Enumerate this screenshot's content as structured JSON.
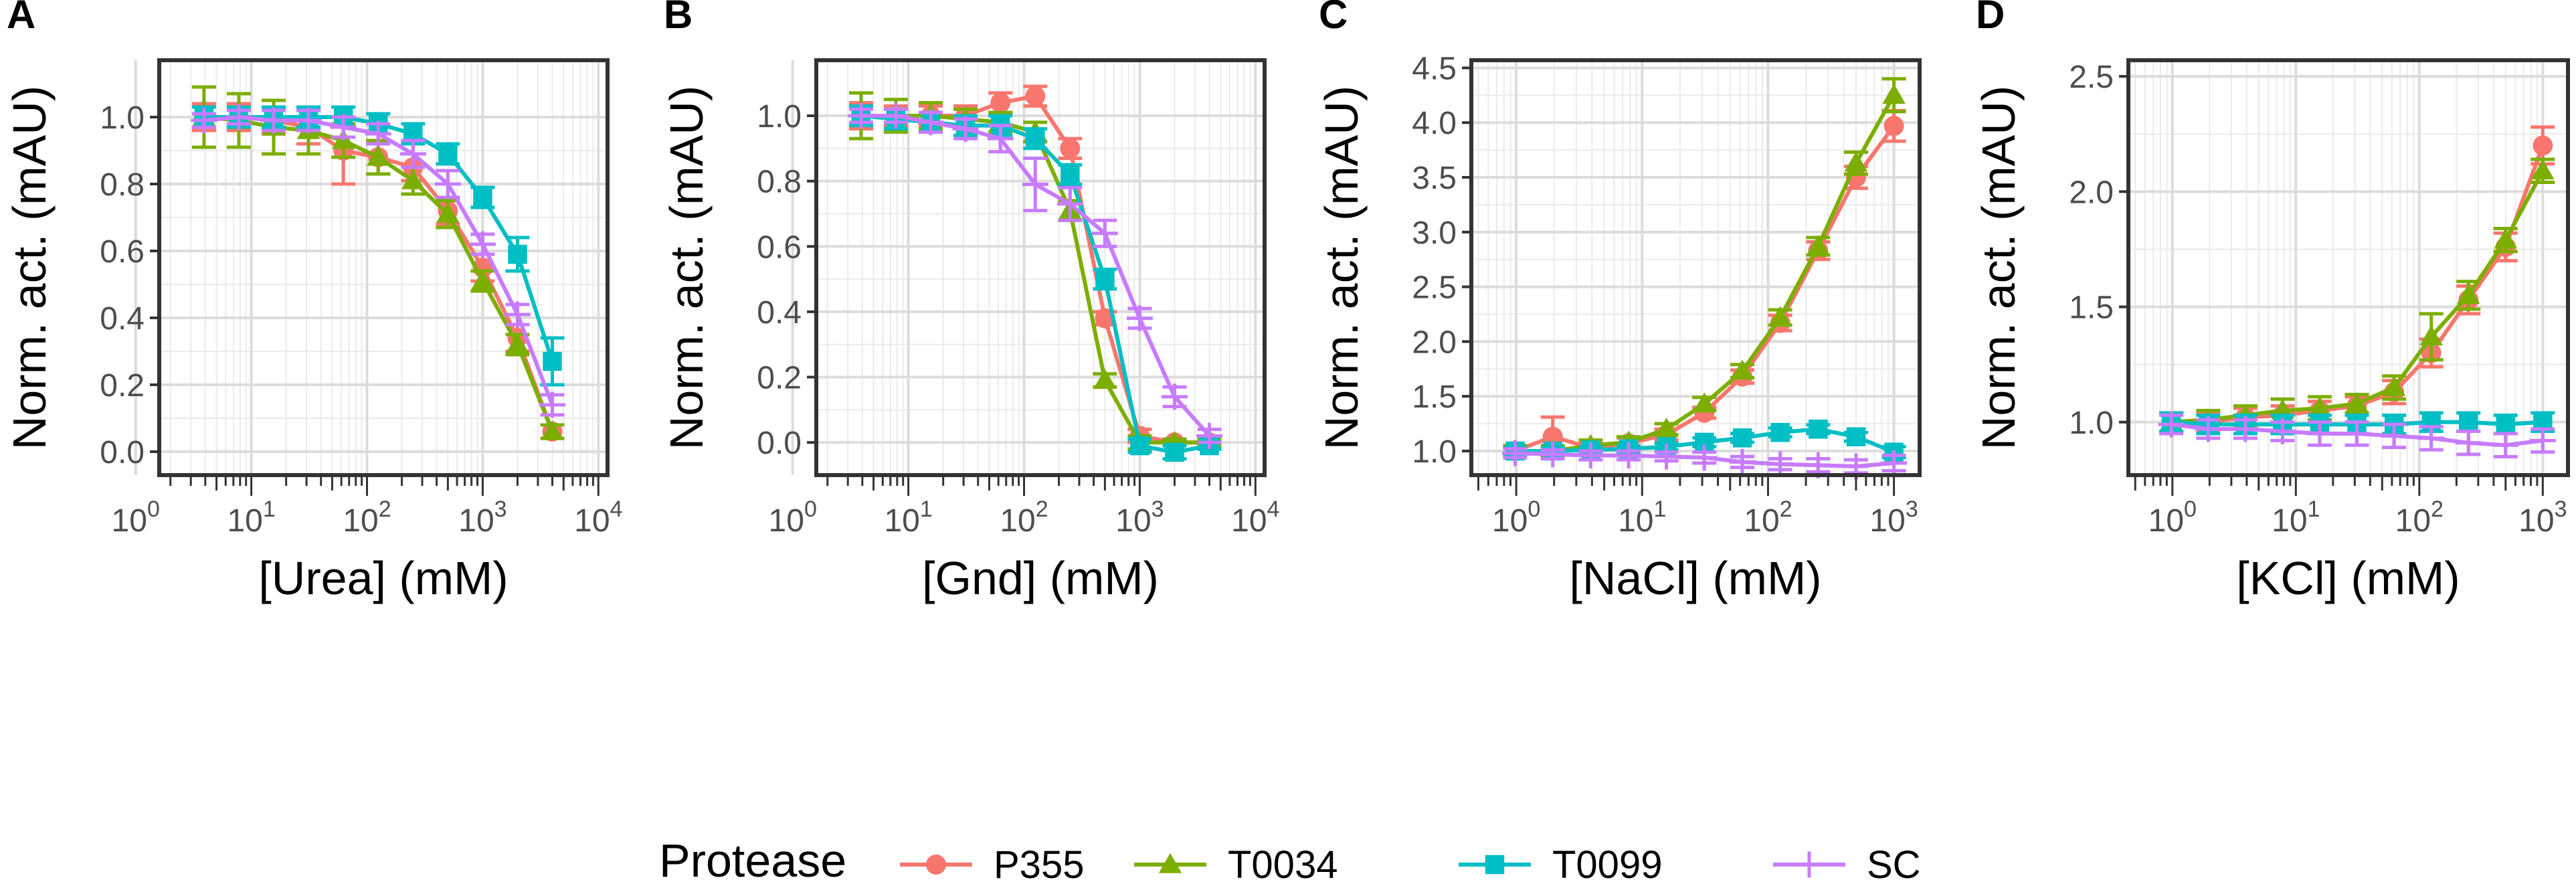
{
  "legend": {
    "title": "Protease",
    "entries": [
      {
        "name": "P355",
        "color": "#F8766D",
        "shape": "circle"
      },
      {
        "name": "T0034",
        "color": "#7CAE00",
        "shape": "triangle"
      },
      {
        "name": "T0099",
        "color": "#00BFC4",
        "shape": "square"
      },
      {
        "name": "SC",
        "color": "#C77CFF",
        "shape": "plus"
      }
    ]
  },
  "chart_data": [
    {
      "panel": "A",
      "type": "line",
      "xscale": "log10",
      "xlabel": "[Urea] (mM)",
      "ylabel": "Norm. act. (mAU)",
      "xlim": [
        1.6,
        12000
      ],
      "ylim": [
        -0.07,
        1.17
      ],
      "xticks": [
        {
          "value": 1,
          "base": "10",
          "exp": "0"
        },
        {
          "value": 10,
          "base": "10",
          "exp": "1"
        },
        {
          "value": 100,
          "base": "10",
          "exp": "2"
        },
        {
          "value": 1000,
          "base": "10",
          "exp": "3"
        },
        {
          "value": 10000,
          "base": "10",
          "exp": "4"
        }
      ],
      "yticks": [
        "0.0",
        "0.2",
        "0.4",
        "0.6",
        "0.8",
        "1.0"
      ],
      "x": [
        3.9,
        7.8,
        15.6,
        31.2,
        62.5,
        125,
        250,
        500,
        1000,
        2000,
        4000
      ],
      "series": [
        {
          "name": "P355",
          "values": [
            1.0,
            1.0,
            0.99,
            0.97,
            0.9,
            0.88,
            0.85,
            0.72,
            0.55,
            0.34,
            0.06
          ],
          "errors": [
            0.04,
            0.04,
            0.04,
            0.05,
            0.1,
            0.05,
            0.04,
            0.04,
            0.04,
            0.04,
            0.02
          ]
        },
        {
          "name": "T0034",
          "values": [
            1.0,
            0.99,
            0.97,
            0.96,
            0.93,
            0.88,
            0.81,
            0.71,
            0.51,
            0.32,
            0.06
          ],
          "errors": [
            0.09,
            0.08,
            0.08,
            0.07,
            0.05,
            0.05,
            0.04,
            0.04,
            0.03,
            0.03,
            0.02
          ]
        },
        {
          "name": "T0099",
          "values": [
            1.0,
            1.0,
            1.0,
            1.0,
            1.0,
            0.98,
            0.95,
            0.89,
            0.76,
            0.59,
            0.27
          ],
          "errors": [
            0.03,
            0.03,
            0.03,
            0.03,
            0.03,
            0.03,
            0.03,
            0.03,
            0.03,
            0.05,
            0.07
          ]
        },
        {
          "name": "SC",
          "values": [
            0.99,
            1.0,
            0.99,
            0.99,
            0.97,
            0.95,
            0.89,
            0.8,
            0.62,
            0.41,
            0.14
          ],
          "errors": [
            0.02,
            0.02,
            0.03,
            0.03,
            0.03,
            0.03,
            0.04,
            0.04,
            0.03,
            0.03,
            0.03
          ]
        }
      ]
    },
    {
      "panel": "B",
      "type": "line",
      "xscale": "log10",
      "xlabel": "[Gnd] (mM)",
      "ylabel": "Norm. act. (mAU)",
      "xlim": [
        1.6,
        12000
      ],
      "ylim": [
        -0.1,
        1.17
      ],
      "xticks": [
        {
          "value": 1,
          "base": "10",
          "exp": "0"
        },
        {
          "value": 10,
          "base": "10",
          "exp": "1"
        },
        {
          "value": 100,
          "base": "10",
          "exp": "2"
        },
        {
          "value": 1000,
          "base": "10",
          "exp": "3"
        },
        {
          "value": 10000,
          "base": "10",
          "exp": "4"
        }
      ],
      "yticks": [
        "0.0",
        "0.2",
        "0.4",
        "0.6",
        "0.8",
        "1.0"
      ],
      "x": [
        3.9,
        7.8,
        15.6,
        31.2,
        62.5,
        125,
        250,
        500,
        1000,
        2000,
        4000
      ],
      "series": [
        {
          "name": "P355",
          "values": [
            1.0,
            1.0,
            1.0,
            1.0,
            1.04,
            1.06,
            0.9,
            0.38,
            0.02,
            0.0,
            0.0
          ],
          "errors": [
            0.04,
            0.03,
            0.03,
            0.03,
            0.03,
            0.03,
            0.03,
            0.02,
            0.02,
            0.01,
            0.01
          ]
        },
        {
          "name": "T0034",
          "values": [
            1.0,
            1.0,
            1.0,
            0.99,
            0.98,
            0.95,
            0.71,
            0.19,
            0.0,
            0.0,
            0.0
          ],
          "errors": [
            0.07,
            0.05,
            0.04,
            0.03,
            0.03,
            0.03,
            0.03,
            0.02,
            0.02,
            0.01,
            0.01
          ]
        },
        {
          "name": "T0099",
          "values": [
            1.0,
            0.99,
            0.98,
            0.97,
            0.97,
            0.93,
            0.82,
            0.5,
            -0.01,
            -0.03,
            -0.01
          ],
          "errors": [
            0.03,
            0.03,
            0.03,
            0.03,
            0.03,
            0.03,
            0.03,
            0.03,
            0.02,
            0.02,
            0.01
          ]
        },
        {
          "name": "SC",
          "values": [
            1.0,
            1.0,
            0.98,
            0.96,
            0.93,
            0.79,
            0.73,
            0.64,
            0.38,
            0.14,
            0.02
          ],
          "errors": [
            0.02,
            0.02,
            0.03,
            0.03,
            0.04,
            0.08,
            0.05,
            0.04,
            0.03,
            0.03,
            0.02
          ]
        }
      ]
    },
    {
      "panel": "C",
      "type": "line",
      "xscale": "log10",
      "xlabel": "[NaCl] (mM)",
      "ylabel": "Norm. act. (mAU)",
      "xlim": [
        0.44,
        1600
      ],
      "ylim": [
        0.78,
        4.57
      ],
      "xticks": [
        {
          "value": 1,
          "base": "10",
          "exp": "0"
        },
        {
          "value": 10,
          "base": "10",
          "exp": "1"
        },
        {
          "value": 100,
          "base": "10",
          "exp": "2"
        },
        {
          "value": 1000,
          "base": "10",
          "exp": "3"
        }
      ],
      "yticks": [
        "1.0",
        "1.5",
        "2.0",
        "2.5",
        "3.0",
        "3.5",
        "4.0",
        "4.5"
      ],
      "x": [
        0.98,
        1.95,
        3.9,
        7.8,
        15.6,
        31.2,
        62.5,
        125,
        250,
        500,
        1000
      ],
      "series": [
        {
          "name": "P355",
          "values": [
            1.0,
            1.13,
            1.03,
            1.07,
            1.15,
            1.35,
            1.68,
            2.17,
            2.83,
            3.5,
            3.97
          ],
          "errors": [
            0.05,
            0.18,
            0.05,
            0.05,
            0.05,
            0.05,
            0.06,
            0.07,
            0.08,
            0.1,
            0.14
          ]
        },
        {
          "name": "T0034",
          "values": [
            1.0,
            1.0,
            1.05,
            1.08,
            1.2,
            1.43,
            1.73,
            2.22,
            2.87,
            3.63,
            4.25
          ],
          "errors": [
            0.05,
            0.05,
            0.05,
            0.05,
            0.05,
            0.06,
            0.06,
            0.07,
            0.08,
            0.1,
            0.15
          ]
        },
        {
          "name": "T0099",
          "values": [
            1.0,
            1.0,
            1.01,
            1.02,
            1.04,
            1.08,
            1.12,
            1.17,
            1.2,
            1.13,
            0.99
          ],
          "errors": [
            0.03,
            0.03,
            0.03,
            0.03,
            0.03,
            0.04,
            0.04,
            0.04,
            0.04,
            0.04,
            0.05
          ]
        },
        {
          "name": "SC",
          "values": [
            0.98,
            0.97,
            0.96,
            0.96,
            0.95,
            0.94,
            0.9,
            0.88,
            0.87,
            0.86,
            0.89
          ],
          "errors": [
            0.04,
            0.04,
            0.04,
            0.04,
            0.04,
            0.05,
            0.05,
            0.05,
            0.06,
            0.06,
            0.07
          ]
        }
      ]
    },
    {
      "panel": "D",
      "type": "line",
      "xscale": "log10",
      "xlabel": "[KCl] (mM)",
      "ylabel": "Norm. act. (mAU)",
      "xlim": [
        0.44,
        1600
      ],
      "ylim": [
        0.77,
        2.57
      ],
      "xticks": [
        {
          "value": 1,
          "base": "10",
          "exp": "0"
        },
        {
          "value": 10,
          "base": "10",
          "exp": "1"
        },
        {
          "value": 100,
          "base": "10",
          "exp": "2"
        },
        {
          "value": 1000,
          "base": "10",
          "exp": "3"
        }
      ],
      "yticks": [
        "1.0",
        "1.5",
        "2.0",
        "2.5"
      ],
      "x": [
        0.98,
        1.95,
        3.9,
        7.8,
        15.6,
        31.2,
        62.5,
        125,
        250,
        500,
        1000
      ],
      "series": [
        {
          "name": "P355",
          "values": [
            1.0,
            1.0,
            1.02,
            1.03,
            1.05,
            1.07,
            1.13,
            1.3,
            1.53,
            1.76,
            2.2
          ],
          "errors": [
            0.04,
            0.04,
            0.04,
            0.04,
            0.04,
            0.04,
            0.05,
            0.06,
            0.06,
            0.06,
            0.08
          ]
        },
        {
          "name": "T0034",
          "values": [
            1.0,
            1.01,
            1.03,
            1.05,
            1.06,
            1.08,
            1.15,
            1.37,
            1.55,
            1.79,
            2.09
          ],
          "errors": [
            0.04,
            0.04,
            0.04,
            0.05,
            0.05,
            0.04,
            0.05,
            0.1,
            0.06,
            0.05,
            0.05
          ]
        },
        {
          "name": "T0099",
          "values": [
            1.0,
            0.99,
            0.99,
            0.99,
            0.99,
            0.99,
            0.99,
            1.0,
            1.0,
            0.99,
            1.0
          ],
          "errors": [
            0.04,
            0.04,
            0.04,
            0.04,
            0.04,
            0.04,
            0.04,
            0.04,
            0.04,
            0.04,
            0.04
          ]
        },
        {
          "name": "SC",
          "values": [
            0.99,
            0.97,
            0.97,
            0.96,
            0.95,
            0.95,
            0.94,
            0.93,
            0.91,
            0.9,
            0.92
          ],
          "errors": [
            0.04,
            0.04,
            0.04,
            0.04,
            0.05,
            0.05,
            0.05,
            0.05,
            0.05,
            0.05,
            0.05
          ]
        }
      ]
    }
  ]
}
